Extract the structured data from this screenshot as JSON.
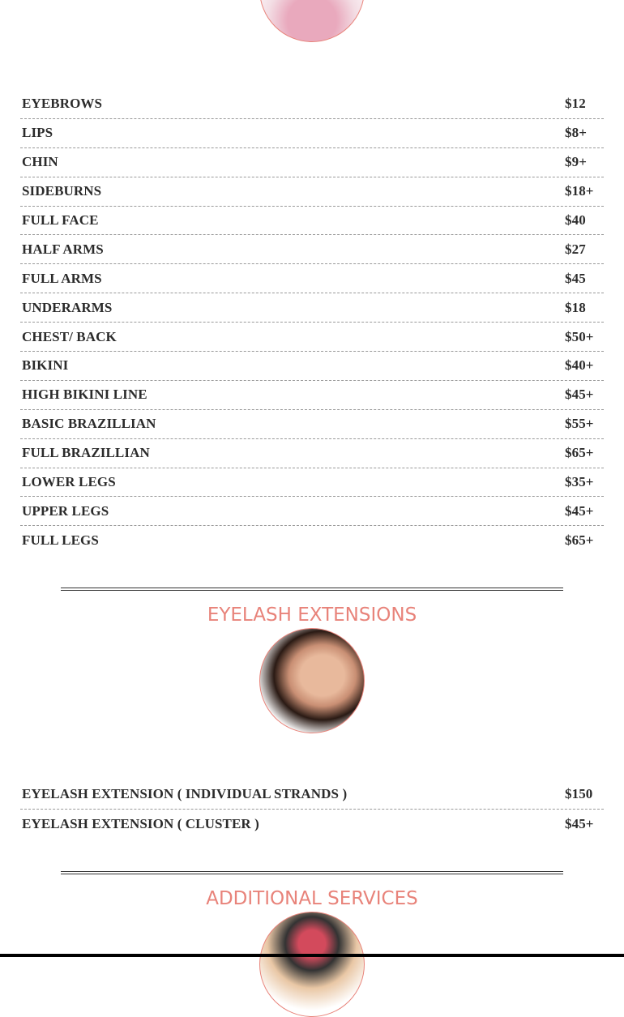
{
  "waxing": {
    "items": [
      {
        "name": "EYEBROWS",
        "price": "$12"
      },
      {
        "name": "LIPS",
        "price": "$8+"
      },
      {
        "name": "CHIN",
        "price": "$9+"
      },
      {
        "name": "SIDEBURNS",
        "price": "$18+"
      },
      {
        "name": "FULL FACE",
        "price": "$40"
      },
      {
        "name": "HALF ARMS",
        "price": "$27"
      },
      {
        "name": "FULL ARMS",
        "price": "$45"
      },
      {
        "name": "UNDERARMS",
        "price": "$18"
      },
      {
        "name": "CHEST/ BACK",
        "price": "$50+"
      },
      {
        "name": "BIKINI",
        "price": "$40+"
      },
      {
        "name": "HIGH BIKINI LINE",
        "price": "$45+"
      },
      {
        "name": "BASIC BRAZILLIAN",
        "price": "$55+"
      },
      {
        "name": "FULL BRAZILLIAN",
        "price": "$65+"
      },
      {
        "name": "LOWER LEGS",
        "price": "$35+"
      },
      {
        "name": "UPPER LEGS",
        "price": "$45+"
      },
      {
        "name": "FULL LEGS",
        "price": "$65+"
      }
    ]
  },
  "eyelash": {
    "title": "EYELASH EXTENSIONS",
    "items": [
      {
        "name": "EYELASH EXTENSION ( INDIVIDUAL STRANDS )",
        "price": "$150"
      },
      {
        "name": "EYELASH EXTENSION ( CLUSTER )",
        "price": "$45+"
      }
    ]
  },
  "additional": {
    "title": "ADDITIONAL SERVICES"
  },
  "colors": {
    "accent": "#e8837a",
    "text": "#2b2b2b"
  }
}
